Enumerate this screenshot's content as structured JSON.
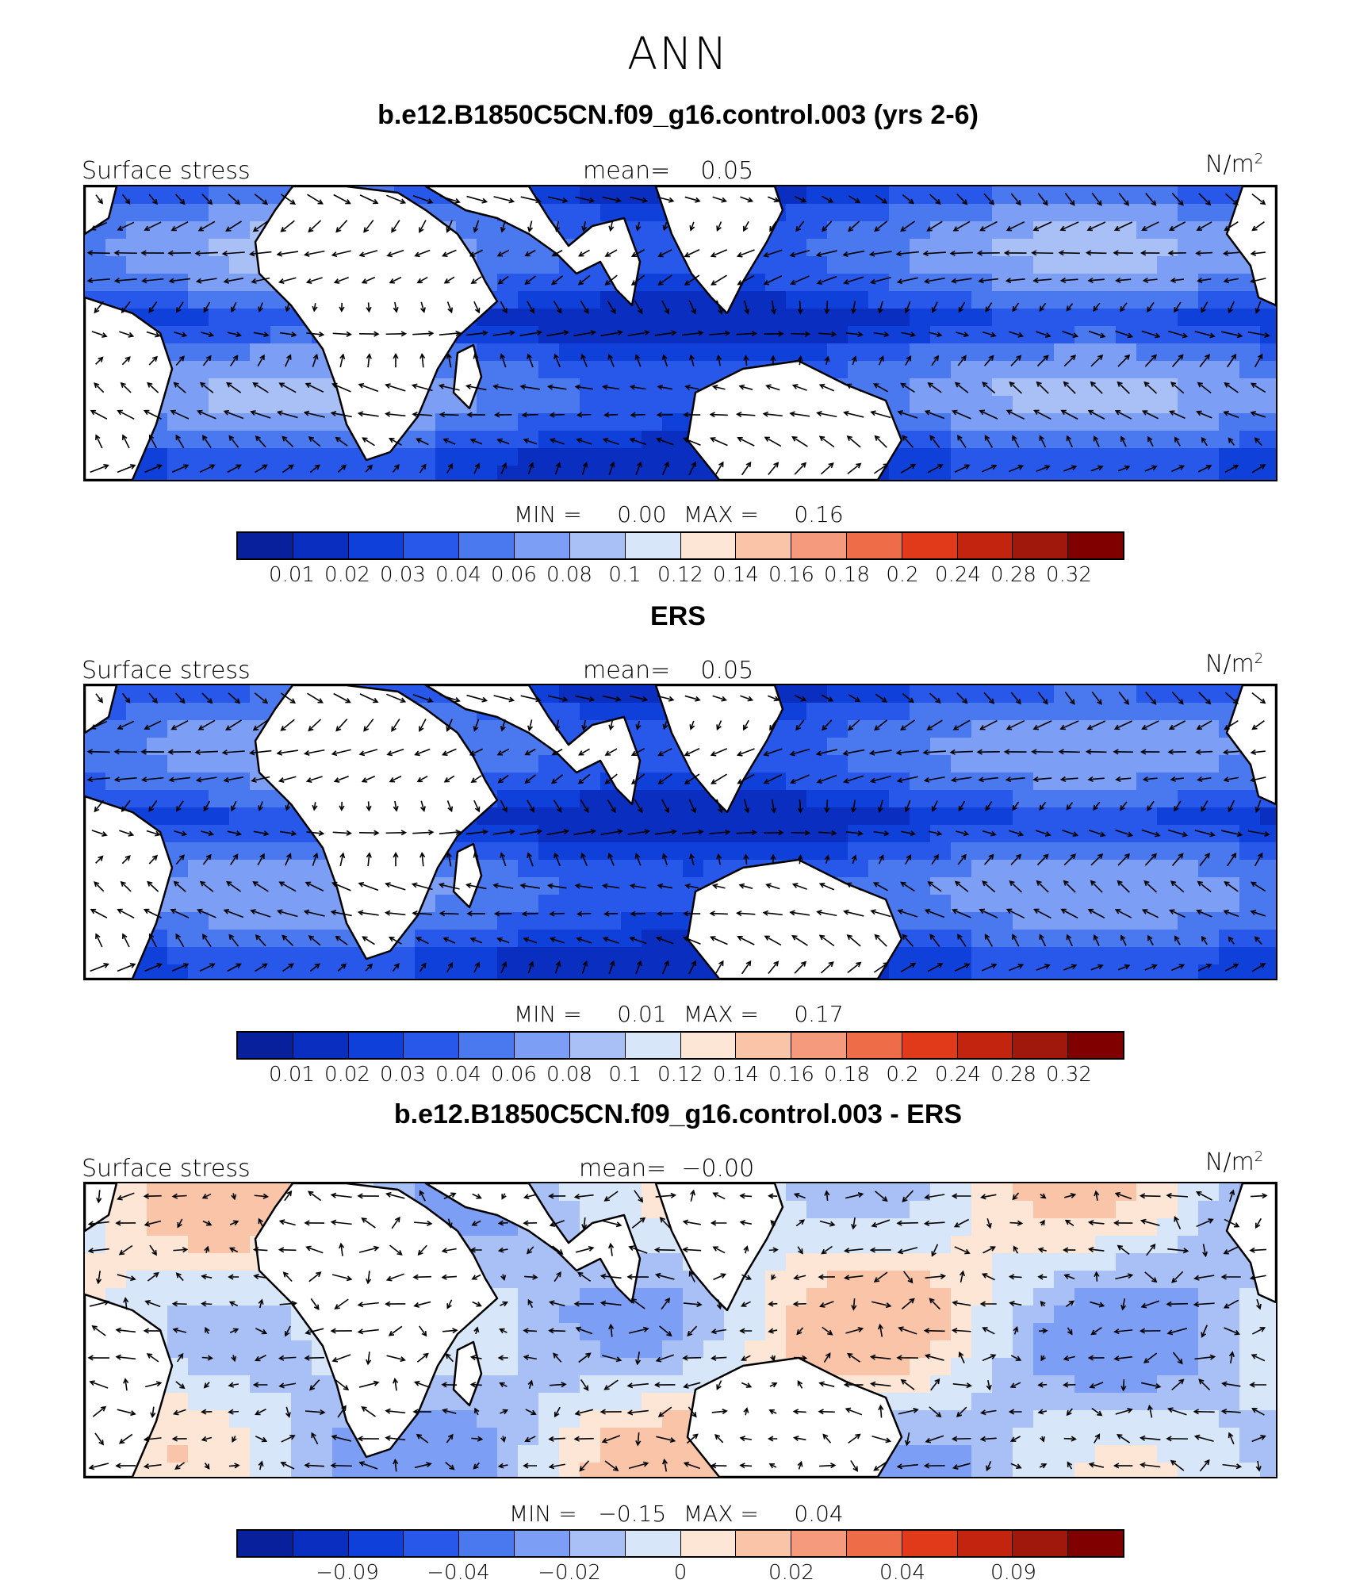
{
  "title": "ANN",
  "colors": [
    "#08209c",
    "#0a2ec0",
    "#1040da",
    "#2858ea",
    "#4a78ef",
    "#7c9ef4",
    "#a8c0f6",
    "#d8e6fa",
    "#fde6d6",
    "#f9c4a8",
    "#f59a7c",
    "#ef6c48",
    "#e03a1a",
    "#c22410",
    "#a0180c",
    "#800000"
  ],
  "units_label": "N/m",
  "units_power": "2",
  "panels": [
    {
      "title": "b.e12.B1850C5CN.f09_g16.control.003 (yrs 2-6)",
      "left_label": "Surface stress",
      "mean_text": "mean=    0.05",
      "min_text": "MIN =     0.00",
      "max_text": "MAX =     0.16",
      "colorbar_ticks": [
        "0.01",
        "0.02",
        "0.03",
        "0.04",
        "0.06",
        "0.08",
        "0.1",
        "0.12",
        "0.14",
        "0.16",
        "0.18",
        "0.2",
        "0.24",
        "0.28",
        "0.32"
      ]
    },
    {
      "title": "ERS",
      "left_label": "Surface stress",
      "mean_text": "mean=    0.05",
      "min_text": "MIN =     0.01",
      "max_text": "MAX =     0.17",
      "colorbar_ticks": [
        "0.01",
        "0.02",
        "0.03",
        "0.04",
        "0.06",
        "0.08",
        "0.1",
        "0.12",
        "0.14",
        "0.16",
        "0.18",
        "0.2",
        "0.24",
        "0.28",
        "0.32"
      ]
    },
    {
      "title": "b.e12.B1850C5CN.f09_g16.control.003 - ERS",
      "left_label": "Surface stress",
      "mean_text": "mean=  −0.00",
      "min_text": "MIN =   −0.15",
      "max_text": "MAX =     0.04",
      "colorbar_ticks": [
        "−0.09",
        "−0.04",
        "−0.02",
        "0",
        "0.02",
        "0.04",
        "0.09"
      ]
    }
  ]
}
